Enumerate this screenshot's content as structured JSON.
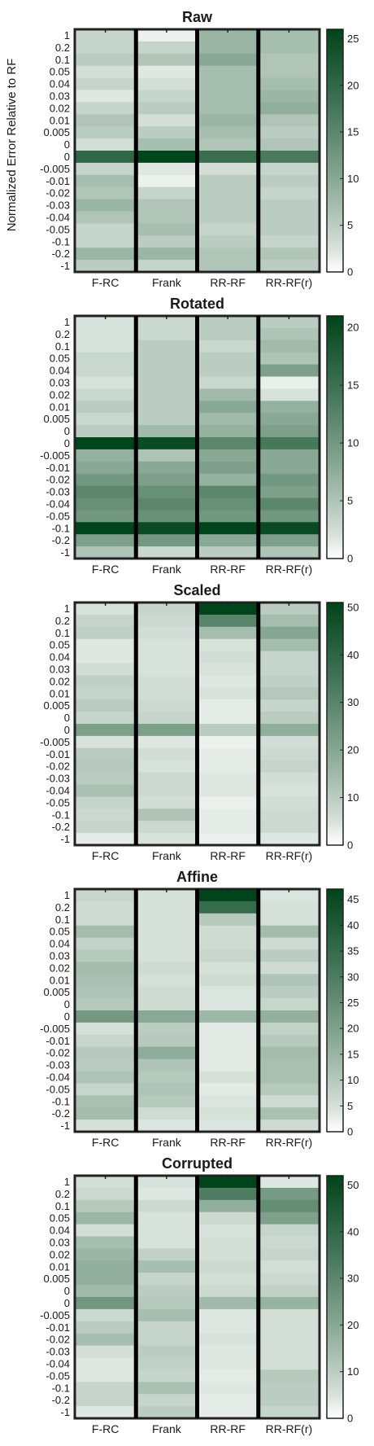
{
  "figure": {
    "ylabel": "Normalized Error Relative to RF",
    "colormap": {
      "low": "#ffffff",
      "high": "#00441b"
    }
  },
  "chart_data": [
    {
      "type": "heatmap",
      "title": "Raw",
      "x_categories": [
        "F-RC",
        "Frank",
        "RR-RF",
        "RR-RF(r)"
      ],
      "y_categories": [
        "1",
        "0.2",
        "0.1",
        "0.05",
        "0.04",
        "0.03",
        "0.02",
        "0.01",
        "0.005",
        "0",
        "0",
        "-0.005",
        "-0.01",
        "-0.02",
        "-0.03",
        "-0.04",
        "-0.05",
        "-0.1",
        "-0.2",
        "-1"
      ],
      "colorbar": {
        "min": 0,
        "max": 26,
        "ticks": [
          0,
          5,
          10,
          15,
          20,
          25
        ]
      },
      "values": [
        [
          4,
          1,
          8,
          7
        ],
        [
          4,
          4,
          8,
          7
        ],
        [
          5,
          6,
          10,
          6
        ],
        [
          3,
          2,
          7,
          6
        ],
        [
          4,
          3,
          7,
          7
        ],
        [
          2,
          4,
          7,
          8
        ],
        [
          4,
          5,
          7,
          9
        ],
        [
          6,
          3,
          8,
          6
        ],
        [
          5,
          5,
          7,
          5
        ],
        [
          3,
          7,
          6,
          6
        ],
        [
          20,
          26,
          19,
          17
        ],
        [
          4,
          2,
          3,
          4
        ],
        [
          7,
          1,
          5,
          5
        ],
        [
          6,
          4,
          5,
          4
        ],
        [
          8,
          6,
          5,
          5
        ],
        [
          6,
          6,
          5,
          5
        ],
        [
          4,
          7,
          4,
          5
        ],
        [
          4,
          5,
          5,
          4
        ],
        [
          8,
          8,
          6,
          6
        ],
        [
          5,
          4,
          6,
          5
        ]
      ]
    },
    {
      "type": "heatmap",
      "title": "Rotated",
      "x_categories": [
        "F-RC",
        "Frank",
        "RR-RF",
        "RR-RF(r)"
      ],
      "y_categories": [
        "1",
        "0.2",
        "0.1",
        "0.05",
        "0.04",
        "0.03",
        "0.02",
        "0.01",
        "0.005",
        "0",
        "0",
        "-0.005",
        "-0.01",
        "-0.02",
        "-0.03",
        "-0.04",
        "-0.05",
        "-0.1",
        "-0.2",
        "-1"
      ],
      "colorbar": {
        "min": 0,
        "max": 21,
        "ticks": [
          0,
          5,
          10,
          15,
          20
        ]
      },
      "values": [
        [
          2,
          3,
          4,
          4
        ],
        [
          2,
          3,
          4,
          5
        ],
        [
          2,
          4,
          3,
          6
        ],
        [
          3,
          4,
          4,
          5
        ],
        [
          3,
          4,
          4,
          9
        ],
        [
          2,
          4,
          3,
          1
        ],
        [
          3,
          4,
          6,
          2
        ],
        [
          4,
          4,
          8,
          7
        ],
        [
          3,
          4,
          6,
          8
        ],
        [
          4,
          6,
          7,
          9
        ],
        [
          21,
          20,
          12,
          14
        ],
        [
          7,
          5,
          8,
          8
        ],
        [
          8,
          8,
          9,
          8
        ],
        [
          10,
          9,
          7,
          10
        ],
        [
          12,
          11,
          12,
          9
        ],
        [
          11,
          12,
          11,
          12
        ],
        [
          10,
          11,
          10,
          10
        ],
        [
          21,
          20,
          21,
          20
        ],
        [
          9,
          10,
          8,
          9
        ],
        [
          5,
          3,
          4,
          5
        ]
      ]
    },
    {
      "type": "heatmap",
      "title": "Scaled",
      "x_categories": [
        "F-RC",
        "Frank",
        "RR-RF",
        "RR-RF(r)"
      ],
      "y_categories": [
        "1",
        "0.2",
        "0.1",
        "0.05",
        "0.04",
        "0.03",
        "0.02",
        "0.01",
        "0.005",
        "0",
        "0",
        "-0.005",
        "-0.01",
        "-0.02",
        "-0.03",
        "-0.04",
        "-0.05",
        "-0.1",
        "-0.2",
        "-1"
      ],
      "colorbar": {
        "min": 0,
        "max": 51,
        "ticks": [
          0,
          10,
          20,
          30,
          40,
          50
        ]
      },
      "values": [
        [
          5,
          8,
          51,
          10
        ],
        [
          8,
          7,
          30,
          14
        ],
        [
          9,
          6,
          14,
          20
        ],
        [
          4,
          5,
          5,
          14
        ],
        [
          4,
          5,
          6,
          8
        ],
        [
          6,
          5,
          5,
          8
        ],
        [
          9,
          6,
          4,
          9
        ],
        [
          8,
          6,
          5,
          11
        ],
        [
          10,
          7,
          3,
          8
        ],
        [
          8,
          8,
          3,
          10
        ],
        [
          22,
          22,
          10,
          18
        ],
        [
          5,
          4,
          2,
          6
        ],
        [
          10,
          6,
          3,
          7
        ],
        [
          11,
          5,
          3,
          8
        ],
        [
          10,
          7,
          4,
          6
        ],
        [
          13,
          7,
          4,
          5
        ],
        [
          8,
          6,
          2,
          6
        ],
        [
          7,
          12,
          3,
          7
        ],
        [
          8,
          7,
          3,
          7
        ],
        [
          3,
          5,
          2,
          4
        ]
      ]
    },
    {
      "type": "heatmap",
      "title": "Affine",
      "x_categories": [
        "F-RC",
        "Frank",
        "RR-RF",
        "RR-RF(r)"
      ],
      "y_categories": [
        "1",
        "0.2",
        "0.1",
        "0.05",
        "0.04",
        "0.03",
        "0.02",
        "0.01",
        "0.005",
        "0",
        "0",
        "-0.005",
        "-0.01",
        "-0.02",
        "-0.03",
        "-0.04",
        "-0.05",
        "-0.1",
        "-0.2",
        "-1"
      ],
      "colorbar": {
        "min": 0,
        "max": 47,
        "ticks": [
          0,
          5,
          10,
          15,
          20,
          25,
          30,
          35,
          40,
          45
        ]
      },
      "values": [
        [
          7,
          5,
          47,
          4
        ],
        [
          6,
          5,
          35,
          5
        ],
        [
          6,
          5,
          10,
          5
        ],
        [
          13,
          5,
          6,
          13
        ],
        [
          8,
          5,
          6,
          6
        ],
        [
          10,
          5,
          7,
          9
        ],
        [
          13,
          6,
          5,
          6
        ],
        [
          12,
          5,
          6,
          11
        ],
        [
          11,
          6,
          4,
          9
        ],
        [
          10,
          6,
          4,
          7
        ],
        [
          22,
          18,
          14,
          16
        ],
        [
          5,
          9,
          3,
          8
        ],
        [
          7,
          10,
          3,
          10
        ],
        [
          10,
          17,
          3,
          13
        ],
        [
          9,
          11,
          3,
          12
        ],
        [
          11,
          10,
          5,
          12
        ],
        [
          7,
          11,
          3,
          10
        ],
        [
          12,
          10,
          4,
          6
        ],
        [
          13,
          6,
          5,
          12
        ],
        [
          5,
          4,
          4,
          6
        ]
      ]
    },
    {
      "type": "heatmap",
      "title": "Corrupted",
      "x_categories": [
        "F-RC",
        "Frank",
        "RR-RF",
        "RR-RF(r)"
      ],
      "y_categories": [
        "1",
        "0.2",
        "0.1",
        "0.05",
        "0.04",
        "0.03",
        "0.02",
        "0.01",
        "0.005",
        "0",
        "0",
        "-0.005",
        "-0.01",
        "-0.02",
        "-0.03",
        "-0.04",
        "-0.05",
        "-0.1",
        "-0.2",
        "-1"
      ],
      "colorbar": {
        "min": 0,
        "max": 52,
        "ticks": [
          0,
          10,
          20,
          30,
          40,
          50
        ]
      },
      "values": [
        [
          6,
          5,
          52,
          4
        ],
        [
          7,
          4,
          33,
          24
        ],
        [
          11,
          7,
          18,
          28
        ],
        [
          16,
          5,
          7,
          22
        ],
        [
          6,
          5,
          5,
          8
        ],
        [
          14,
          5,
          6,
          7
        ],
        [
          16,
          9,
          6,
          8
        ],
        [
          18,
          14,
          7,
          6
        ],
        [
          18,
          8,
          6,
          7
        ],
        [
          15,
          10,
          7,
          9
        ],
        [
          25,
          11,
          15,
          17
        ],
        [
          7,
          14,
          4,
          6
        ],
        [
          10,
          8,
          4,
          6
        ],
        [
          14,
          8,
          5,
          6
        ],
        [
          6,
          10,
          4,
          6
        ],
        [
          4,
          9,
          4,
          6
        ],
        [
          4,
          8,
          3,
          11
        ],
        [
          8,
          13,
          4,
          10
        ],
        [
          8,
          8,
          3,
          10
        ],
        [
          4,
          10,
          3,
          8
        ]
      ]
    }
  ]
}
